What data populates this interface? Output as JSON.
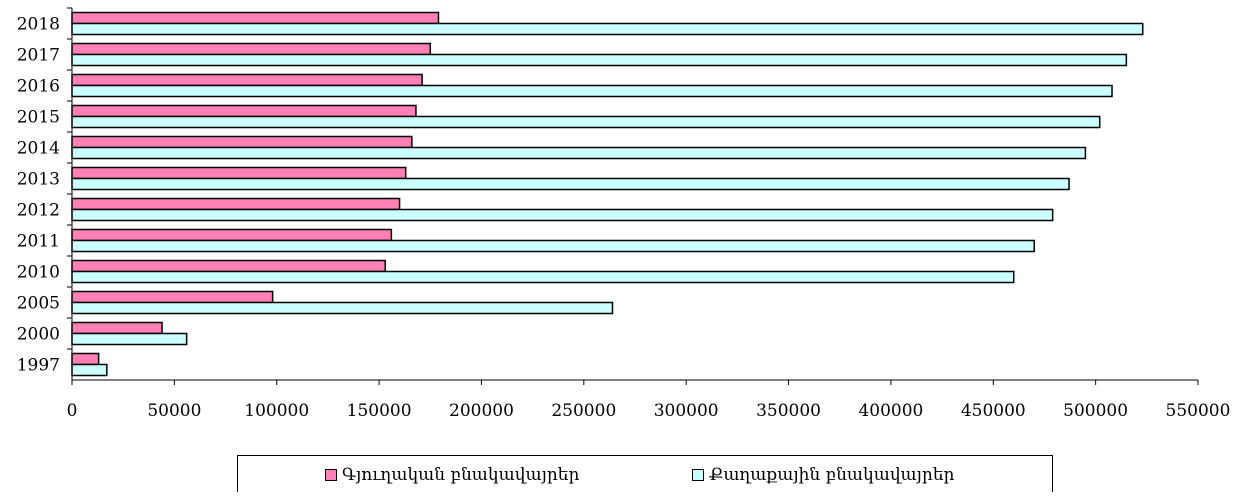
{
  "chart_data": {
    "type": "bar",
    "orientation": "horizontal",
    "categories": [
      "1997",
      "2000",
      "2005",
      "2010",
      "2011",
      "2012",
      "2013",
      "2014",
      "2015",
      "2016",
      "2017",
      "2018"
    ],
    "series": [
      {
        "name": "Գյուղական բնակավայրեր",
        "color": "#ff80b4",
        "values": [
          13000,
          44000,
          98000,
          153000,
          156000,
          160000,
          163000,
          166000,
          168000,
          171000,
          175000,
          179000
        ]
      },
      {
        "name": "Քաղաքային բնակավայրեր",
        "color": "#ccffff",
        "values": [
          17000,
          56000,
          264000,
          460000,
          470000,
          479000,
          487000,
          495000,
          502000,
          508000,
          515000,
          523000
        ]
      }
    ],
    "xlim": [
      0,
      550000
    ],
    "xticks": [
      "0",
      "50000",
      "100000",
      "150000",
      "200000",
      "250000",
      "300000",
      "350000",
      "400000",
      "450000",
      "500000",
      "550000"
    ],
    "grid": false,
    "legend_position": "bottom"
  }
}
